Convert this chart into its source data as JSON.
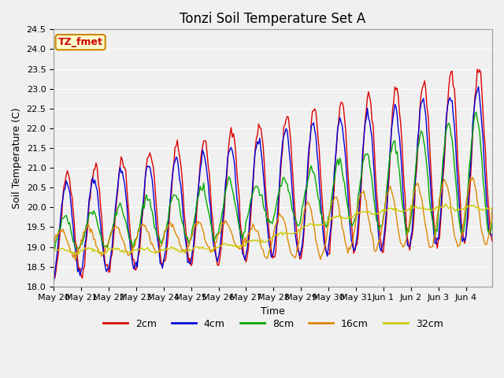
{
  "title": "Tonzi Soil Temperature Set A",
  "xlabel": "Time",
  "ylabel": "Soil Temperature (C)",
  "ylim": [
    18.0,
    24.5
  ],
  "background_color": "#f0f0f0",
  "plot_bg_color": "#f0f0f0",
  "series_colors": {
    "2cm": "#dd0000",
    "4cm": "#0000dd",
    "8cm": "#00aa00",
    "16cm": "#dd8800",
    "32cm": "#cccc00"
  },
  "legend_label_color": "#cc0000",
  "annotation_text": "TZ_fmet",
  "annotation_bg": "#ffffcc",
  "annotation_border": "#cc8800",
  "xtick_labels": [
    "May 20",
    "May 21",
    "May 22",
    "May 23",
    "May 24",
    "May 25",
    "May 26",
    "May 27",
    "May 28",
    "May 29",
    "May 30",
    "May 31",
    "Jun 1",
    "Jun 2",
    "Jun 3",
    "Jun 4"
  ],
  "grid_color": "#ffffff",
  "title_fontsize": 12,
  "axis_fontsize": 9,
  "tick_fontsize": 8,
  "legend_fontsize": 9
}
